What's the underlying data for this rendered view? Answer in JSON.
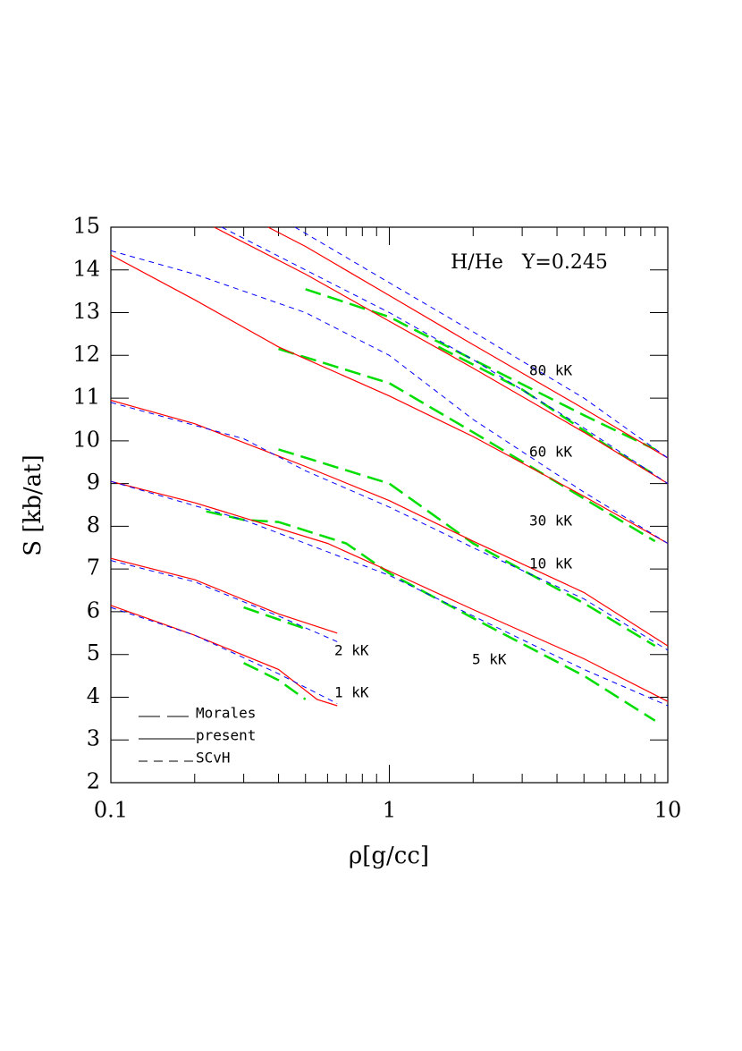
{
  "chart_data": {
    "type": "line",
    "xlabel": "ρ[g/cc]",
    "ylabel": "S [kb/at]",
    "xscale": "log",
    "xlim": [
      0.1,
      10
    ],
    "xticks": [
      0.1,
      1,
      10
    ],
    "xminorticks": [
      0.2,
      0.3,
      0.4,
      0.5,
      0.6,
      0.7,
      0.8,
      0.9,
      2,
      3,
      4,
      5,
      6,
      7,
      8,
      9
    ],
    "ylim": [
      2,
      15
    ],
    "yticks": [
      2,
      3,
      4,
      5,
      6,
      7,
      8,
      9,
      10,
      11,
      12,
      13,
      14,
      15
    ],
    "annotations": [
      "H/He   Y=0.245",
      "80 kK",
      "60 kK",
      "30 kK",
      "10 kK",
      "5 kK",
      "2 kK",
      "1 kK"
    ],
    "legend": "lower left",
    "series": [
      {
        "name": "Morales",
        "color": "#00dd00",
        "dash": "long",
        "lines": [
          {
            "x": [
              0.5,
              1,
              2,
              5,
              9
            ],
            "values": [
              13.55,
              12.9,
              11.9,
              10.6,
              9.8
            ]
          },
          {
            "x": [
              1.5,
              3,
              6,
              9
            ],
            "values": [
              12.2,
              11.2,
              9.9,
              9.2
            ]
          },
          {
            "x": [
              0.4,
              1,
              2,
              5,
              9
            ],
            "values": [
              12.15,
              11.35,
              10.2,
              8.65,
              7.65
            ]
          },
          {
            "x": [
              0.4,
              1,
              2,
              5,
              9
            ],
            "values": [
              9.8,
              9.0,
              7.6,
              6.2,
              5.2
            ]
          },
          {
            "x": [
              0.22,
              0.3,
              0.4,
              0.7,
              1,
              2,
              5,
              9
            ],
            "values": [
              8.35,
              8.15,
              8.1,
              7.6,
              6.9,
              5.85,
              4.5,
              3.45
            ]
          },
          {
            "x": [
              0.3,
              0.5
            ],
            "values": [
              6.1,
              5.6
            ]
          },
          {
            "x": [
              0.3,
              0.4,
              0.5
            ],
            "values": [
              4.8,
              4.4,
              3.95
            ]
          }
        ]
      },
      {
        "name": "present",
        "color": "#ff0000",
        "dash": "solid",
        "lines": [
          {
            "x": [
              0.367,
              0.5,
              1,
              2,
              5,
              10
            ],
            "values": [
              15,
              14.55,
              13.4,
              12.25,
              10.75,
              9.6
            ]
          },
          {
            "x": [
              0.235,
              0.5,
              1,
              2,
              5,
              10
            ],
            "values": [
              15,
              13.9,
              12.8,
              11.7,
              10.2,
              9.0
            ]
          },
          {
            "x": [
              0.1,
              0.2,
              0.4,
              1,
              2,
              5,
              10
            ],
            "values": [
              14.35,
              13.3,
              12.2,
              11.05,
              10.1,
              8.7,
              7.6
            ]
          },
          {
            "x": [
              0.1,
              0.2,
              0.5,
              1,
              2,
              5,
              10
            ],
            "values": [
              10.95,
              10.4,
              9.4,
              8.6,
              7.65,
              6.45,
              5.2
            ]
          },
          {
            "x": [
              0.1,
              0.2,
              0.3,
              0.6,
              1,
              2,
              5,
              10
            ],
            "values": [
              9.05,
              8.55,
              8.2,
              7.6,
              6.95,
              6.05,
              4.9,
              3.9
            ]
          },
          {
            "x": [
              0.1,
              0.2,
              0.4,
              0.65
            ],
            "values": [
              7.25,
              6.75,
              5.95,
              5.5
            ]
          },
          {
            "x": [
              0.1,
              0.2,
              0.4,
              0.55,
              0.65
            ],
            "values": [
              6.15,
              5.45,
              4.65,
              3.95,
              3.8
            ]
          }
        ]
      },
      {
        "name": "SCvH",
        "color": "#0000ff",
        "dash": "short",
        "lines": [
          {
            "x": [
              0.458,
              1,
              2,
              5,
              10
            ],
            "values": [
              15,
              13.7,
              12.55,
              11.0,
              9.6
            ]
          },
          {
            "x": [
              0.25,
              0.5,
              1,
              2,
              5,
              10
            ],
            "values": [
              15,
              14.0,
              13.0,
              11.9,
              10.3,
              9.0
            ]
          },
          {
            "x": [
              0.1,
              0.2,
              0.5,
              1,
              2,
              5,
              10
            ],
            "values": [
              14.45,
              13.9,
              13.0,
              12.0,
              10.5,
              8.8,
              7.6
            ]
          },
          {
            "x": [
              0.1,
              0.3,
              0.5,
              1,
              2,
              5,
              10
            ],
            "values": [
              10.9,
              10.05,
              9.3,
              8.45,
              7.5,
              6.3,
              5.1
            ]
          },
          {
            "x": [
              0.1,
              0.3,
              0.5,
              1,
              2,
              5,
              10
            ],
            "values": [
              9.05,
              8.15,
              7.6,
              6.85,
              5.9,
              4.65,
              3.8
            ]
          },
          {
            "x": [
              0.1,
              0.2,
              0.4,
              0.65
            ],
            "values": [
              7.2,
              6.7,
              5.9,
              5.3
            ]
          },
          {
            "x": [
              0.1,
              0.2,
              0.4,
              0.65
            ],
            "values": [
              6.1,
              5.45,
              4.55,
              3.85
            ]
          }
        ]
      }
    ]
  }
}
